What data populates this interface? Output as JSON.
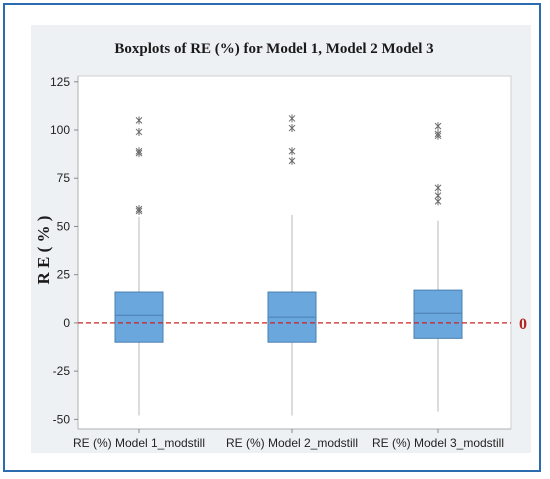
{
  "chart_data": {
    "type": "boxplot",
    "title": "Boxplots of RE (%) for Model 1, Model 2 Model 3",
    "xlabel": "",
    "ylabel": "R E ( % )",
    "ylim": [
      -55,
      128
    ],
    "yticks": [
      -50,
      -25,
      0,
      25,
      50,
      75,
      100,
      125
    ],
    "categories": [
      "RE (%) Model 1_modstill",
      "RE (%) Model 2_modstill",
      "RE (%) Model 3_modstill"
    ],
    "boxes": [
      {
        "category": "RE (%) Model 1_modstill",
        "whisker_low": -48,
        "q1": -10,
        "median": 4,
        "q3": 16,
        "whisker_high": 55,
        "outliers": [
          58,
          59,
          88,
          89,
          99,
          105
        ]
      },
      {
        "category": "RE (%) Model 2_modstill",
        "whisker_low": -48,
        "q1": -10,
        "median": 3,
        "q3": 16,
        "whisker_high": 56,
        "outliers": [
          84,
          89,
          101,
          106
        ]
      },
      {
        "category": "RE (%) Model 3_modstill",
        "whisker_low": -46,
        "q1": -8,
        "median": 5,
        "q3": 17,
        "whisker_high": 53,
        "outliers": [
          63,
          66,
          70,
          97,
          98,
          102
        ]
      }
    ],
    "reference_line": {
      "value": 0,
      "label": "0",
      "color": "#cc2222",
      "style": "dashed"
    },
    "colors": {
      "box_fill": "#6aa7dc",
      "box_stroke": "#4a7fb0",
      "plot_bg": "#ffffff",
      "outer_bg": "#eef1f4",
      "frame": "#2b6cb0"
    },
    "grid": false,
    "legend": "none"
  }
}
